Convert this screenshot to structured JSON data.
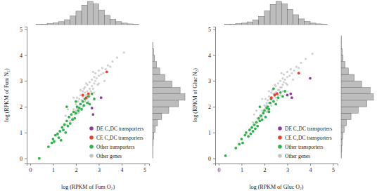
{
  "chart_data": [
    {
      "type": "scatter",
      "x_label": "log (RPKM of Fum O₂)",
      "y_label": "log (RPKM of Fum N₂)",
      "xlim": [
        -0.15,
        5.2
      ],
      "ylim": [
        -0.2,
        5.1
      ],
      "xticks": [
        0,
        1,
        2,
        3,
        4,
        5
      ],
      "yticks": [
        0,
        1,
        2,
        3,
        4,
        5
      ],
      "legend": "lower right",
      "series": [
        {
          "name": "DE C₄DC transporters",
          "color": "#8e3d9e",
          "x": [
            2.7,
            2.75,
            3.1
          ],
          "values": [
            1.95,
            1.7,
            2.35
          ]
        },
        {
          "name": "CE C₄DC transporters",
          "color": "#e8412c",
          "x": [
            2.3,
            2.45,
            2.55,
            3.35
          ],
          "values": [
            2.45,
            2.35,
            2.5,
            3.35
          ]
        },
        {
          "name": "Other transporters",
          "color": "#2fb34c",
          "x": [
            0.4,
            0.8,
            0.95,
            1.0,
            1.05,
            1.1,
            1.2,
            1.25,
            1.3,
            1.35,
            1.4,
            1.45,
            1.5,
            1.55,
            1.6,
            1.65,
            1.7,
            1.75,
            1.8,
            1.85,
            1.9,
            1.95,
            2.0,
            2.05,
            2.1,
            2.15,
            2.2,
            2.25,
            2.3,
            2.35,
            2.4,
            2.5,
            2.55,
            2.6,
            2.7,
            2.8,
            1.6,
            2.0
          ],
          "values": [
            0.0,
            0.45,
            0.6,
            0.75,
            0.65,
            0.9,
            0.95,
            0.8,
            1.05,
            0.7,
            1.2,
            1.1,
            1.3,
            1.0,
            1.45,
            1.25,
            1.6,
            1.35,
            1.7,
            1.5,
            1.8,
            1.55,
            1.75,
            2.0,
            1.85,
            1.95,
            2.1,
            1.9,
            2.2,
            2.05,
            2.3,
            2.15,
            2.4,
            2.1,
            2.5,
            2.3,
            2.0,
            2.2
          ]
        },
        {
          "name": "Other genes",
          "color": "#c4c4c4",
          "x": [
            1.2,
            1.4,
            1.5,
            1.6,
            1.7,
            1.75,
            1.8,
            1.85,
            1.9,
            1.95,
            2.0,
            2.0,
            2.05,
            2.1,
            2.1,
            2.15,
            2.2,
            2.2,
            2.25,
            2.3,
            2.3,
            2.35,
            2.4,
            2.4,
            2.45,
            2.5,
            2.5,
            2.55,
            2.6,
            2.6,
            2.65,
            2.7,
            2.7,
            2.75,
            2.8,
            2.8,
            2.85,
            2.9,
            2.95,
            3.0,
            3.0,
            3.1,
            3.15,
            3.2,
            3.3,
            3.4,
            3.5,
            3.6,
            3.8,
            4.1,
            1.9,
            2.2,
            2.4,
            2.6,
            2.8,
            3.0,
            2.1,
            2.3,
            2.5,
            2.7,
            1.65,
            2.05,
            2.45,
            2.85,
            3.25,
            1.55,
            2.15,
            2.35,
            2.55,
            2.75
          ],
          "values": [
            0.9,
            1.2,
            1.35,
            1.3,
            1.6,
            1.45,
            1.7,
            1.55,
            1.9,
            1.7,
            1.85,
            2.1,
            1.95,
            2.2,
            2.0,
            2.3,
            2.1,
            2.45,
            2.25,
            2.4,
            2.6,
            2.3,
            2.55,
            2.75,
            2.45,
            2.6,
            2.85,
            2.5,
            2.7,
            2.95,
            2.6,
            2.8,
            3.05,
            2.7,
            2.9,
            3.15,
            3.0,
            3.1,
            2.85,
            3.2,
            3.4,
            3.25,
            3.5,
            3.3,
            3.45,
            3.6,
            3.55,
            3.75,
            3.9,
            4.1,
            2.35,
            2.65,
            2.2,
            2.4,
            2.55,
            2.9,
            1.75,
            2.0,
            2.3,
            2.5,
            1.9,
            2.35,
            2.9,
            3.3,
            3.0,
            1.65,
            1.8,
            2.7,
            2.2,
            3.35
          ]
        }
      ],
      "x_histogram": {
        "bins": [
          0,
          0.25,
          0.5,
          0.75,
          1,
          1.25,
          1.5,
          1.75,
          2,
          2.25,
          2.5,
          2.75,
          3,
          3.25,
          3.5,
          3.75,
          4,
          4.25,
          4.5,
          4.75,
          5
        ],
        "counts": [
          0,
          1,
          2,
          4,
          7,
          12,
          20,
          35,
          55,
          80,
          95,
          85,
          60,
          38,
          22,
          12,
          6,
          3,
          1,
          0
        ]
      },
      "y_histogram": {
        "bins": [
          0,
          0.25,
          0.5,
          0.75,
          1,
          1.25,
          1.5,
          1.75,
          2,
          2.25,
          2.5,
          2.75,
          3,
          3.25,
          3.5,
          3.75,
          4,
          4.25,
          4.5,
          4.75,
          5
        ],
        "counts": [
          1,
          1,
          2,
          4,
          8,
          15,
          28,
          50,
          80,
          100,
          85,
          60,
          38,
          22,
          12,
          6,
          3,
          1,
          0,
          0
        ]
      }
    },
    {
      "type": "scatter",
      "x_label": "log (RPKM of Gluc O₂)",
      "y_label": "log (RPKM of Gluc N₂)",
      "xlim": [
        -0.15,
        5.2
      ],
      "ylim": [
        -0.2,
        5.1
      ],
      "xticks": [
        0,
        1,
        2,
        3,
        4,
        5
      ],
      "yticks": [
        0,
        1,
        2,
        3,
        4,
        5
      ],
      "legend": "lower right",
      "series": [
        {
          "name": "DE C₄DC transporters",
          "color": "#8e3d9e",
          "x": [
            3.0,
            3.15,
            3.2,
            4.0
          ],
          "values": [
            2.45,
            2.5,
            2.35,
            3.1
          ]
        },
        {
          "name": "CE C₄DC transporters",
          "color": "#e8412c",
          "x": [
            2.3,
            2.45,
            2.55,
            3.5
          ],
          "values": [
            2.35,
            2.45,
            2.5,
            3.3
          ]
        },
        {
          "name": "Other transporters",
          "color": "#2fb34c",
          "x": [
            0.3,
            0.75,
            0.9,
            1.0,
            1.05,
            1.15,
            1.2,
            1.3,
            1.35,
            1.4,
            1.45,
            1.5,
            1.55,
            1.6,
            1.65,
            1.7,
            1.75,
            1.8,
            1.85,
            1.9,
            1.95,
            2.0,
            2.05,
            2.1,
            2.15,
            2.2,
            2.25,
            2.3,
            2.4,
            2.45,
            2.5,
            2.6,
            2.7,
            2.8,
            2.9,
            2.4,
            1.8,
            2.2
          ],
          "values": [
            0.1,
            0.4,
            0.55,
            0.75,
            0.6,
            0.9,
            1.0,
            0.85,
            1.1,
            0.95,
            1.2,
            1.05,
            1.3,
            1.15,
            1.4,
            1.25,
            1.55,
            1.45,
            1.65,
            1.5,
            1.75,
            1.85,
            1.6,
            1.95,
            2.0,
            1.8,
            2.15,
            2.3,
            2.2,
            2.45,
            2.1,
            2.35,
            2.55,
            2.4,
            2.6,
            2.7,
            2.0,
            1.9
          ]
        },
        {
          "name": "Other genes",
          "color": "#c4c4c4",
          "x": [
            1.2,
            1.4,
            1.5,
            1.6,
            1.7,
            1.75,
            1.8,
            1.85,
            1.9,
            1.95,
            2.0,
            2.0,
            2.05,
            2.1,
            2.1,
            2.15,
            2.2,
            2.2,
            2.25,
            2.3,
            2.3,
            2.35,
            2.4,
            2.4,
            2.45,
            2.5,
            2.5,
            2.55,
            2.6,
            2.6,
            2.65,
            2.7,
            2.7,
            2.75,
            2.8,
            2.8,
            2.85,
            2.9,
            2.95,
            3.0,
            3.0,
            3.1,
            3.15,
            3.2,
            3.3,
            3.4,
            3.5,
            3.6,
            3.8,
            4.1,
            1.9,
            2.2,
            2.4,
            2.6,
            2.8,
            3.0,
            2.1,
            2.3,
            2.5,
            2.7,
            1.65,
            2.05,
            2.45,
            2.85,
            3.25,
            1.55,
            2.15,
            2.35,
            2.55,
            2.75
          ],
          "values": [
            0.95,
            1.15,
            1.4,
            1.3,
            1.55,
            1.5,
            1.65,
            1.6,
            1.85,
            1.75,
            1.9,
            2.05,
            2.0,
            2.15,
            2.05,
            2.25,
            2.15,
            2.4,
            2.3,
            2.35,
            2.55,
            2.35,
            2.5,
            2.7,
            2.5,
            2.55,
            2.8,
            2.55,
            2.65,
            2.9,
            2.65,
            2.75,
            3.0,
            2.75,
            2.85,
            3.1,
            2.95,
            3.05,
            2.9,
            3.15,
            3.35,
            3.2,
            3.45,
            3.3,
            3.4,
            3.55,
            3.5,
            3.7,
            3.85,
            4.05,
            2.3,
            2.6,
            2.25,
            2.45,
            2.6,
            2.85,
            1.8,
            2.05,
            2.35,
            2.45,
            1.85,
            2.3,
            2.85,
            3.25,
            3.05,
            1.7,
            1.85,
            2.65,
            2.25,
            3.3
          ]
        }
      ],
      "x_histogram": {
        "bins": [
          0,
          0.25,
          0.5,
          0.75,
          1,
          1.25,
          1.5,
          1.75,
          2,
          2.25,
          2.5,
          2.75,
          3,
          3.25,
          3.5,
          3.75,
          4,
          4.25,
          4.5,
          4.75,
          5
        ],
        "counts": [
          0,
          1,
          2,
          4,
          6,
          11,
          19,
          33,
          56,
          82,
          94,
          84,
          62,
          40,
          23,
          13,
          6,
          3,
          1,
          0
        ]
      },
      "y_histogram": {
        "bins": [
          0,
          0.25,
          0.5,
          0.75,
          1,
          1.25,
          1.5,
          1.75,
          2,
          2.25,
          2.5,
          2.75,
          3,
          3.25,
          3.5,
          3.75,
          4,
          4.25,
          4.5,
          4.75,
          5
        ],
        "counts": [
          1,
          2,
          3,
          5,
          9,
          16,
          30,
          52,
          78,
          98,
          88,
          62,
          40,
          22,
          12,
          6,
          3,
          1,
          1,
          0
        ]
      }
    }
  ]
}
